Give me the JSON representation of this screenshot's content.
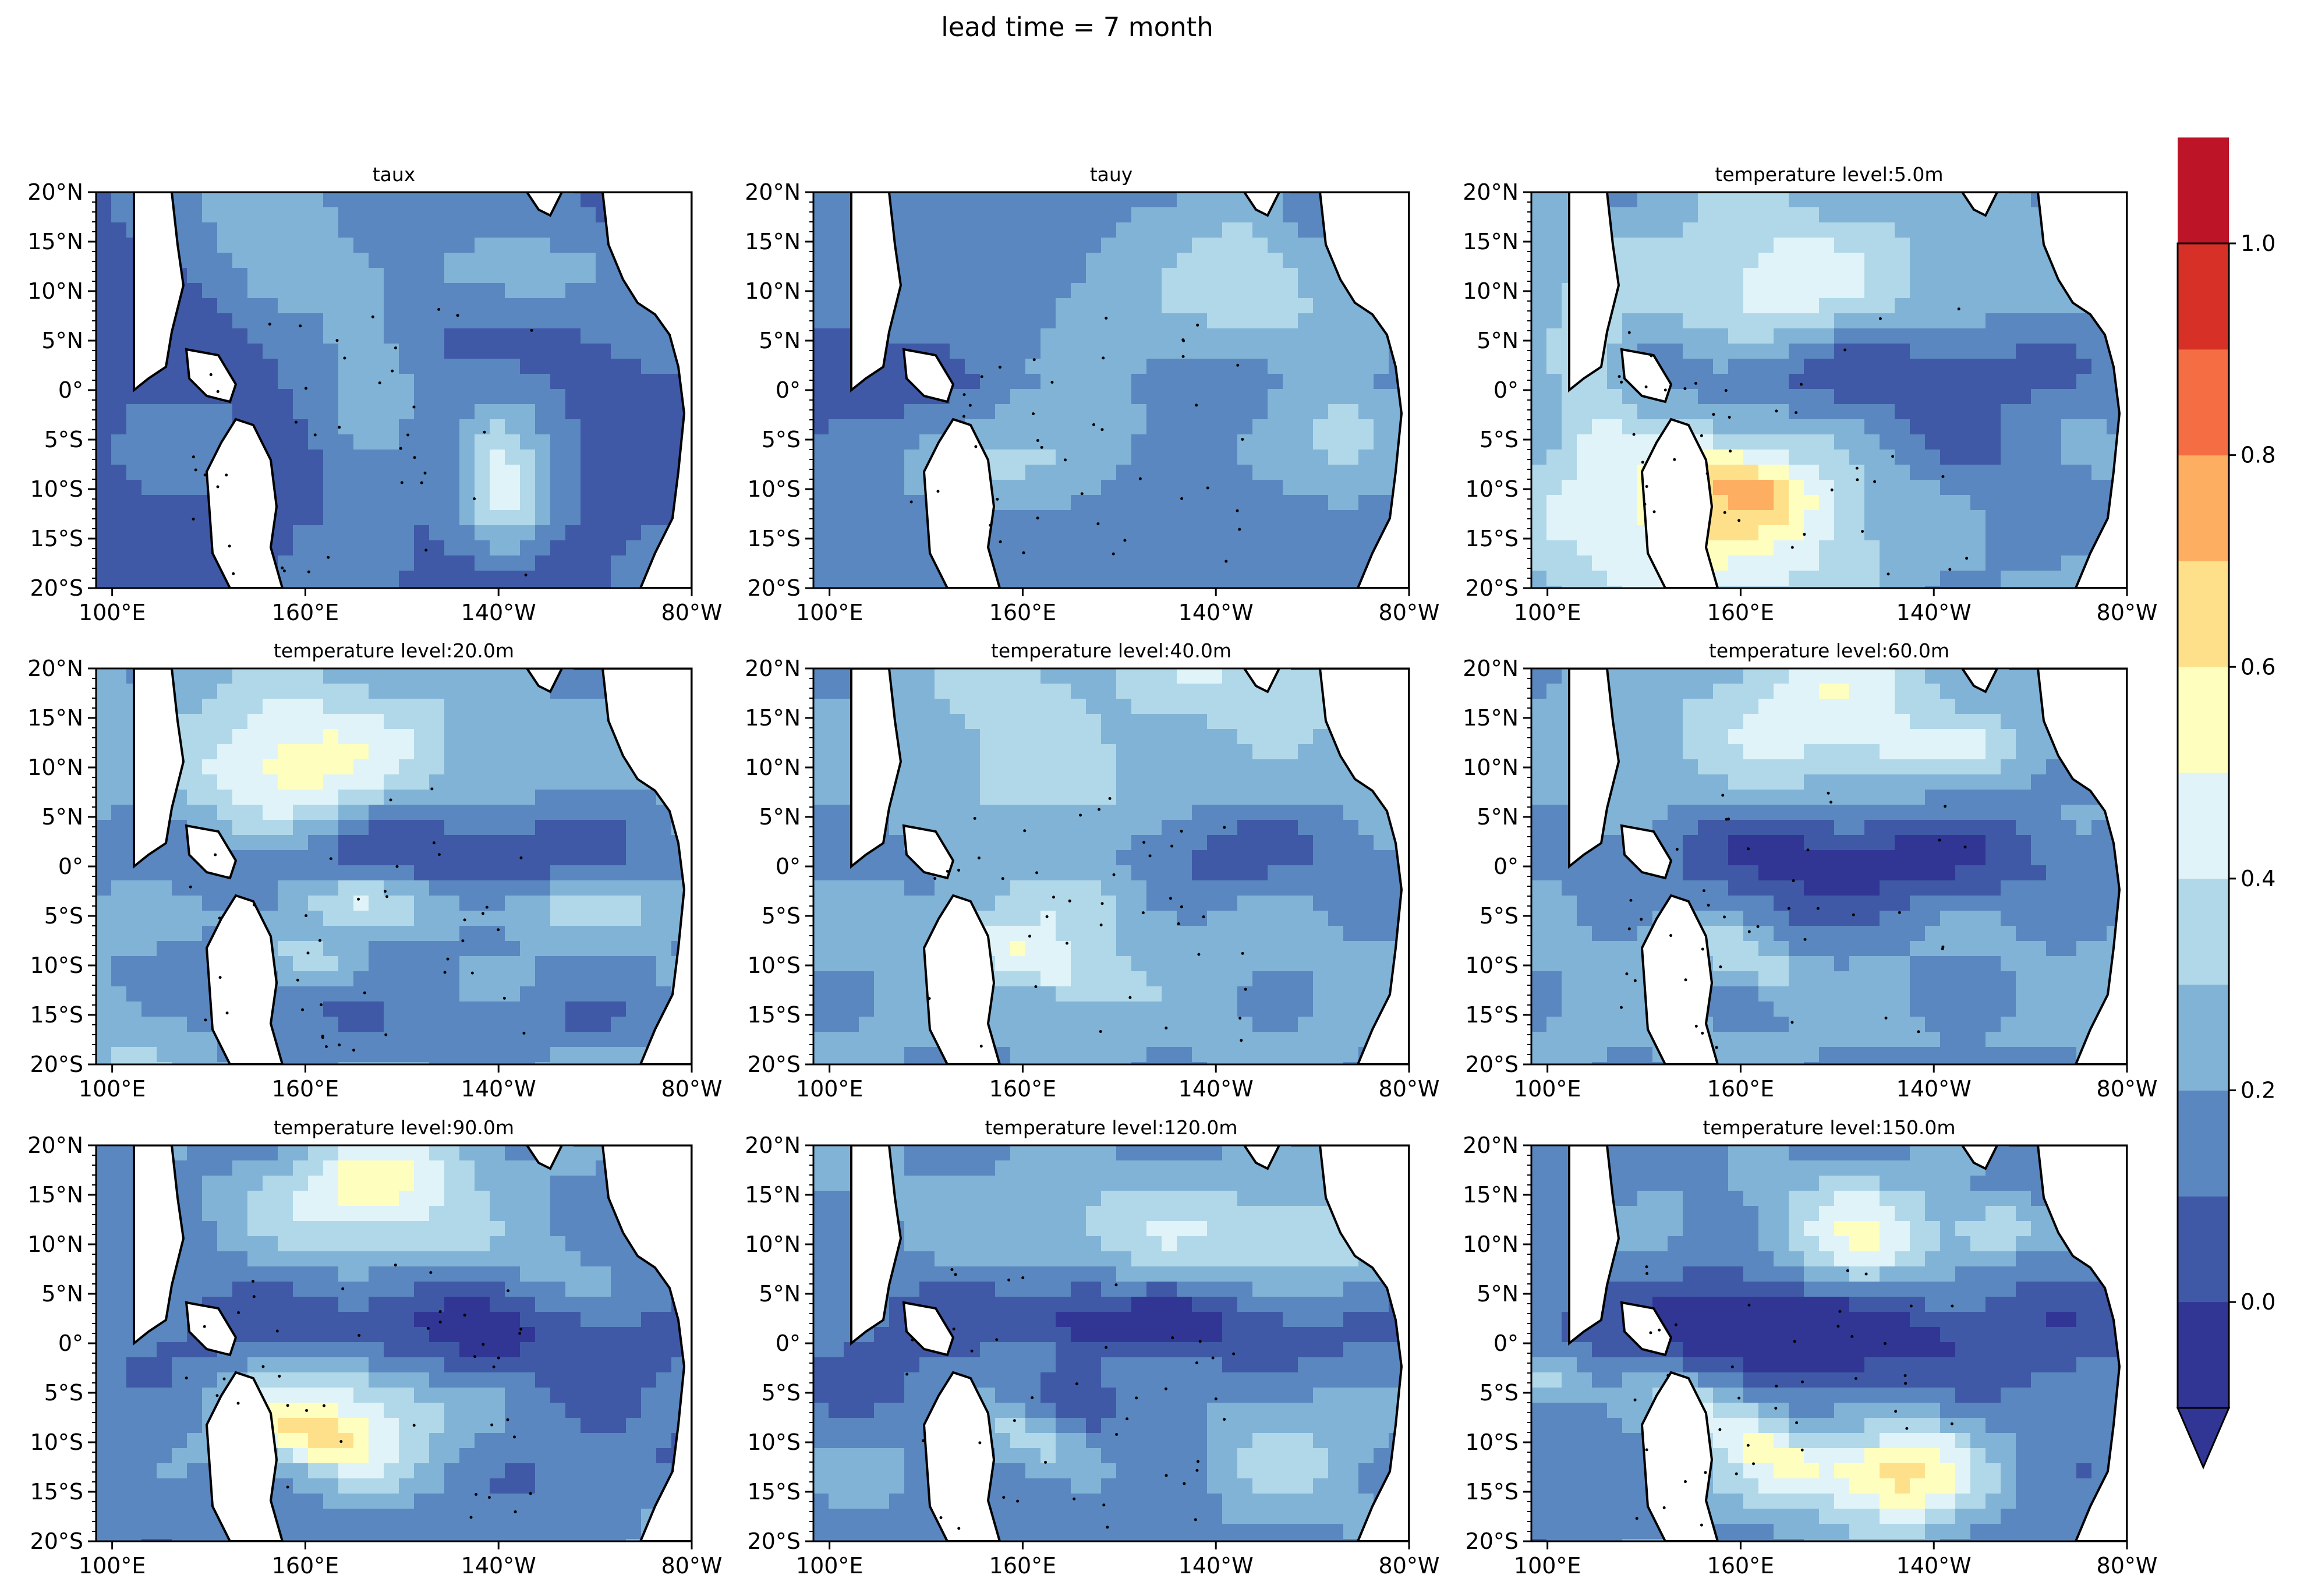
{
  "figure": {
    "title": "lead time = 7 month"
  },
  "chart_data": [
    {
      "type": "heatmap",
      "title": "taux",
      "lat_ticks": [
        "20°N",
        "15°N",
        "10°N",
        "5°N",
        "0°",
        "5°S",
        "10°S",
        "15°S",
        "20°S"
      ],
      "lon_ticks": [
        "100°E",
        "160°E",
        "140°W",
        "80°W"
      ],
      "ylim": [
        -20,
        20
      ],
      "xlim": [
        95,
        280
      ]
    },
    {
      "type": "heatmap",
      "title": "tauy",
      "lat_ticks": [
        "20°N",
        "15°N",
        "10°N",
        "5°N",
        "0°",
        "5°S",
        "10°S",
        "15°S",
        "20°S"
      ],
      "lon_ticks": [
        "100°E",
        "160°E",
        "140°W",
        "80°W"
      ],
      "ylim": [
        -20,
        20
      ],
      "xlim": [
        95,
        280
      ]
    },
    {
      "type": "heatmap",
      "title": "temperature level:5.0m",
      "lat_ticks": [
        "20°N",
        "15°N",
        "10°N",
        "5°N",
        "0°",
        "5°S",
        "10°S",
        "15°S",
        "20°S"
      ],
      "lon_ticks": [
        "100°E",
        "160°E",
        "140°W",
        "80°W"
      ],
      "ylim": [
        -20,
        20
      ],
      "xlim": [
        95,
        280
      ]
    },
    {
      "type": "heatmap",
      "title": "temperature level:20.0m",
      "lat_ticks": [
        "20°N",
        "15°N",
        "10°N",
        "5°N",
        "0°",
        "5°S",
        "10°S",
        "15°S",
        "20°S"
      ],
      "lon_ticks": [
        "100°E",
        "160°E",
        "140°W",
        "80°W"
      ],
      "ylim": [
        -20,
        20
      ],
      "xlim": [
        95,
        280
      ]
    },
    {
      "type": "heatmap",
      "title": "temperature level:40.0m",
      "lat_ticks": [
        "20°N",
        "15°N",
        "10°N",
        "5°N",
        "0°",
        "5°S",
        "10°S",
        "15°S",
        "20°S"
      ],
      "lon_ticks": [
        "100°E",
        "160°E",
        "140°W",
        "80°W"
      ],
      "ylim": [
        -20,
        20
      ],
      "xlim": [
        95,
        280
      ]
    },
    {
      "type": "heatmap",
      "title": "temperature level:60.0m",
      "lat_ticks": [
        "20°N",
        "15°N",
        "10°N",
        "5°N",
        "0°",
        "5°S",
        "10°S",
        "15°S",
        "20°S"
      ],
      "lon_ticks": [
        "100°E",
        "160°E",
        "140°W",
        "80°W"
      ],
      "ylim": [
        -20,
        20
      ],
      "xlim": [
        95,
        280
      ]
    },
    {
      "type": "heatmap",
      "title": "temperature level:90.0m",
      "lat_ticks": [
        "20°N",
        "15°N",
        "10°N",
        "5°N",
        "0°",
        "5°S",
        "10°S",
        "15°S",
        "20°S"
      ],
      "lon_ticks": [
        "100°E",
        "160°E",
        "140°W",
        "80°W"
      ],
      "ylim": [
        -20,
        20
      ],
      "xlim": [
        95,
        280
      ]
    },
    {
      "type": "heatmap",
      "title": "temperature level:120.0m",
      "lat_ticks": [
        "20°N",
        "15°N",
        "10°N",
        "5°N",
        "0°",
        "5°S",
        "10°S",
        "15°S",
        "20°S"
      ],
      "lon_ticks": [
        "100°E",
        "160°E",
        "140°W",
        "80°W"
      ],
      "ylim": [
        -20,
        20
      ],
      "xlim": [
        95,
        280
      ]
    },
    {
      "type": "heatmap",
      "title": "temperature level:150.0m",
      "lat_ticks": [
        "20°N",
        "15°N",
        "10°N",
        "5°N",
        "0°",
        "5°S",
        "10°S",
        "15°S",
        "20°S"
      ],
      "lon_ticks": [
        "100°E",
        "160°E",
        "140°W",
        "80°W"
      ],
      "ylim": [
        -20,
        20
      ],
      "xlim": [
        95,
        280
      ]
    }
  ],
  "colorbar": {
    "ticks": [
      "0.0",
      "0.2",
      "0.4",
      "0.6",
      "0.8",
      "1.0"
    ],
    "range": [
      -0.1,
      1.0
    ],
    "extend": "min",
    "colors": [
      "#313695",
      "#3f59a6",
      "#5a87bf",
      "#81b3d6",
      "#b1d8e9",
      "#e0f3f8",
      "#fefebe",
      "#fee08b",
      "#fdae61",
      "#f46d43",
      "#d73027",
      "#be1428"
    ]
  }
}
